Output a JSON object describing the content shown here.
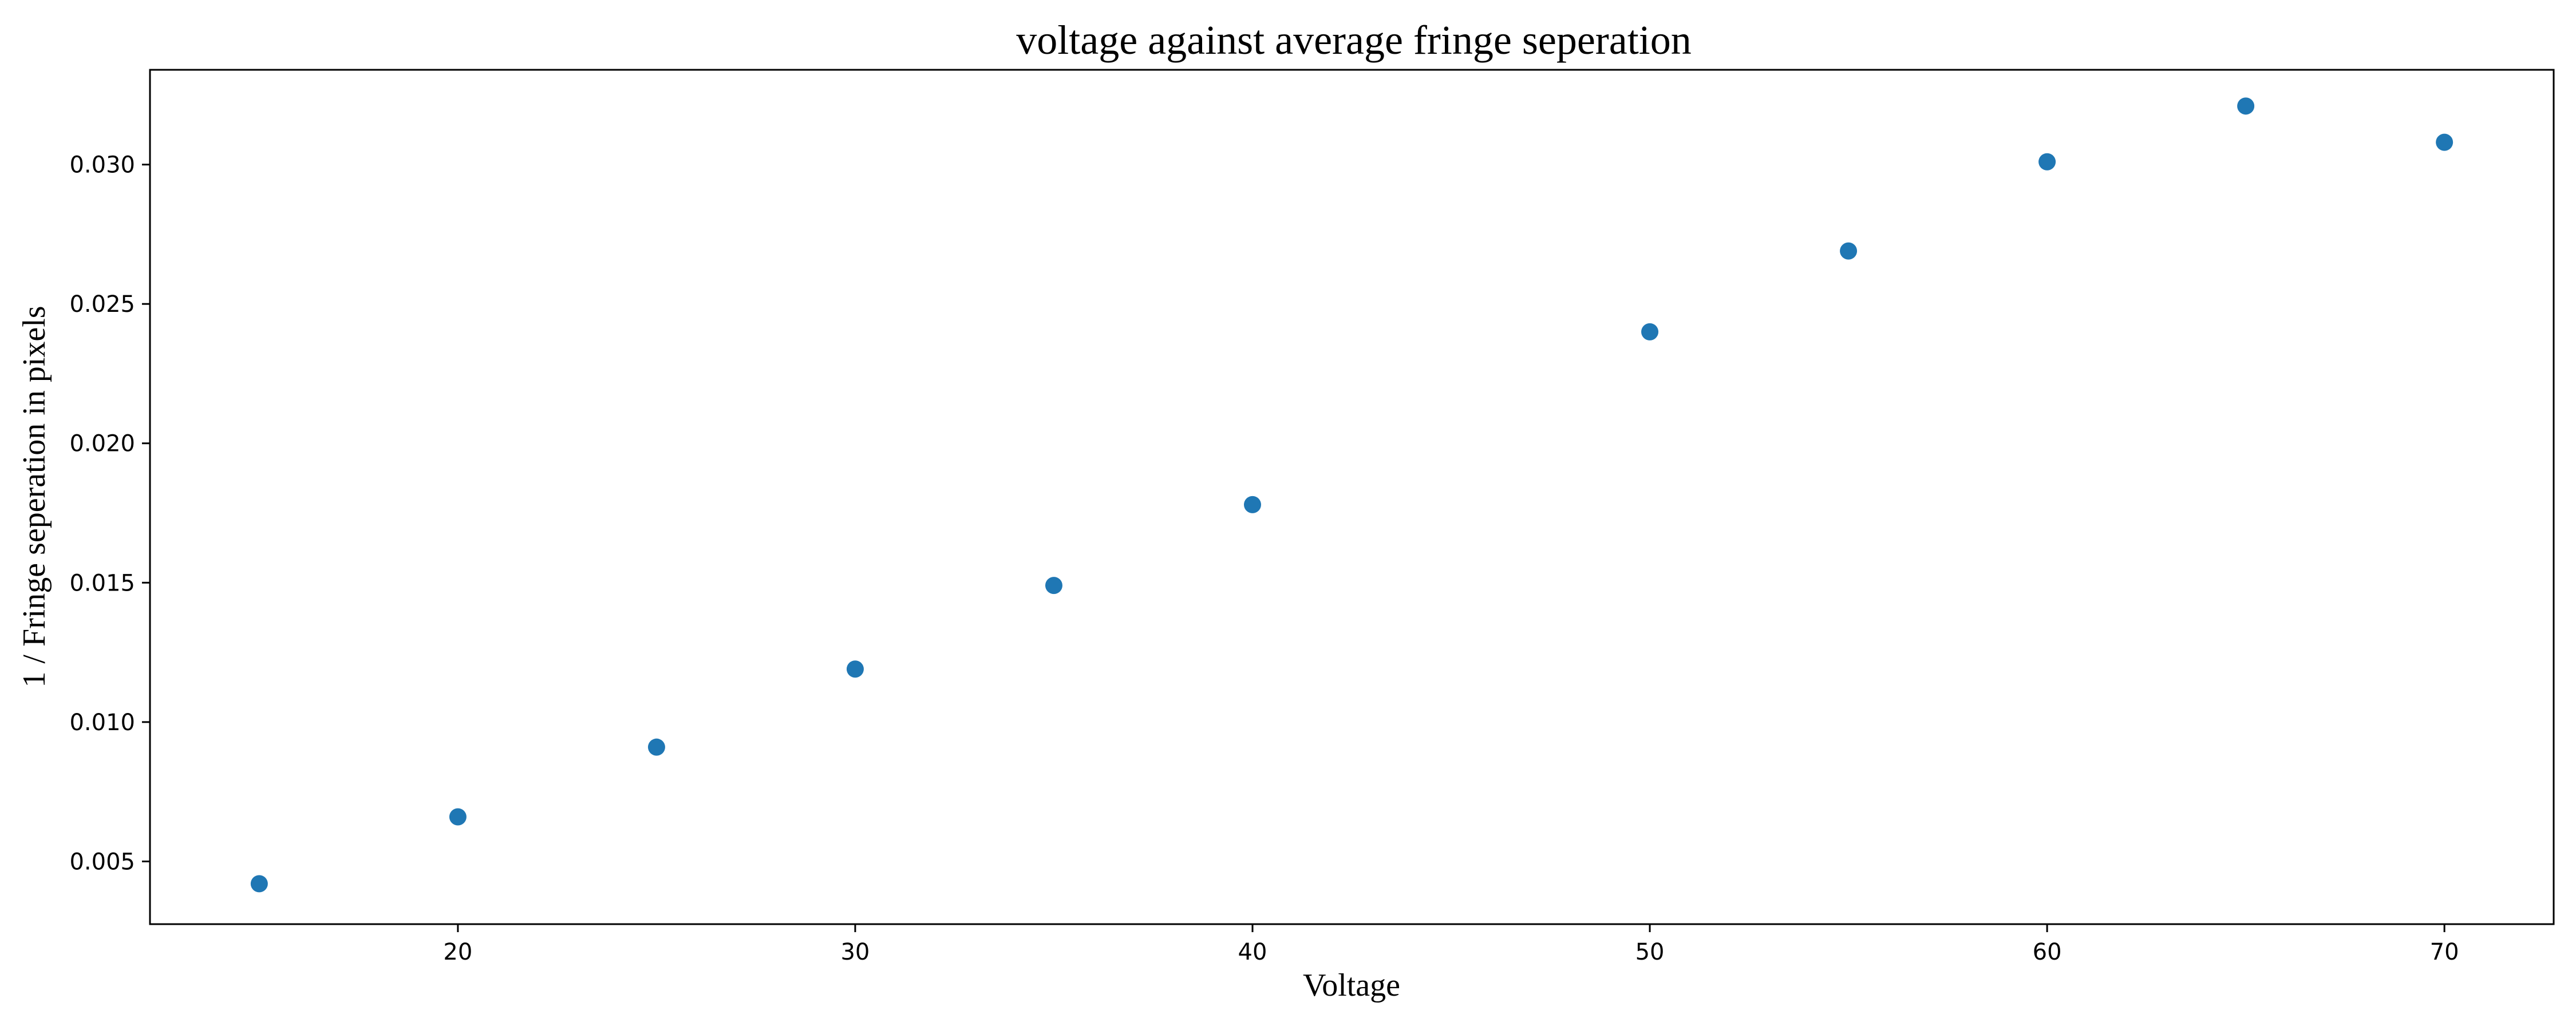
{
  "chart_data": {
    "type": "scatter",
    "title": "voltage against average fringe seperation",
    "xlabel": "Voltage",
    "ylabel": "1 / Fringe seperation in pixels",
    "xlim": [
      12.25,
      72.75
    ],
    "ylim": [
      0.00275,
      0.0334
    ],
    "xticks": [
      20,
      30,
      40,
      50,
      60,
      70
    ],
    "yticks": [
      0.005,
      0.01,
      0.015,
      0.02,
      0.025,
      0.03
    ],
    "ytick_labels": [
      "0.005",
      "0.010",
      "0.015",
      "0.020",
      "0.025",
      "0.030"
    ],
    "grid": false,
    "marker_color": "#1f77b4",
    "series": [
      {
        "x": [
          15,
          20,
          25,
          30,
          35,
          40,
          50,
          55,
          60,
          65,
          70
        ],
        "y": [
          0.0042,
          0.0066,
          0.0091,
          0.0119,
          0.0149,
          0.0178,
          0.024,
          0.0269,
          0.0301,
          0.0321,
          0.0308
        ]
      }
    ]
  }
}
